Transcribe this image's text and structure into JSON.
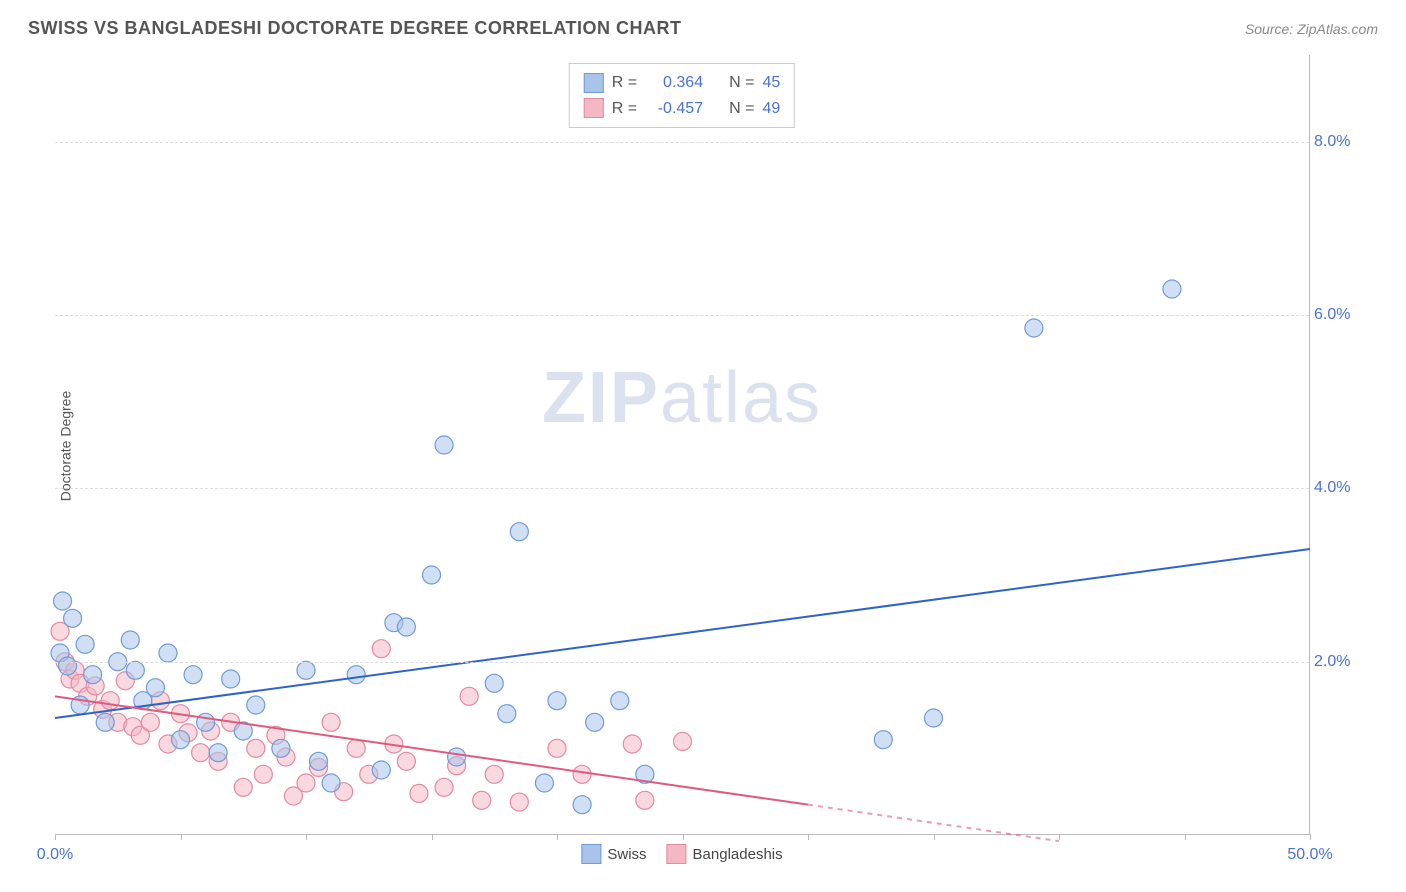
{
  "title": "SWISS VS BANGLADESHI DOCTORATE DEGREE CORRELATION CHART",
  "source_label": "Source: ZipAtlas.com",
  "y_axis_title": "Doctorate Degree",
  "watermark": {
    "bold": "ZIP",
    "light": "atlas"
  },
  "chart": {
    "type": "scatter",
    "xlim": [
      0,
      50
    ],
    "ylim": [
      0,
      9
    ],
    "x_ticks": [
      0,
      5,
      10,
      15,
      20,
      25,
      30,
      35,
      40,
      45,
      50
    ],
    "x_tick_labels": {
      "0": "0.0%",
      "50": "50.0%"
    },
    "x_tick_label_color": "#4a72d4",
    "y_ticks": [
      2,
      4,
      6,
      8
    ],
    "y_tick_labels": [
      "2.0%",
      "4.0%",
      "6.0%",
      "8.0%"
    ],
    "y_tick_label_color": "#4a72d4",
    "grid_color": "#dddddd",
    "axis_color": "#bbbbbb",
    "background_color": "#ffffff"
  },
  "series": {
    "swiss": {
      "label": "Swiss",
      "color_fill": "#a9c4ea",
      "color_stroke": "#6f9bd8",
      "line_color": "#2f63c9",
      "marker_radius": 9,
      "fill_opacity": 0.55,
      "line_width": 2,
      "R": "0.364",
      "N": "45",
      "points": [
        [
          0.3,
          2.7
        ],
        [
          0.7,
          2.5
        ],
        [
          0.2,
          2.1
        ],
        [
          0.5,
          1.95
        ],
        [
          1.2,
          2.2
        ],
        [
          1.0,
          1.5
        ],
        [
          1.5,
          1.85
        ],
        [
          2.0,
          1.3
        ],
        [
          2.5,
          2.0
        ],
        [
          3.0,
          2.25
        ],
        [
          3.2,
          1.9
        ],
        [
          3.5,
          1.55
        ],
        [
          4.0,
          1.7
        ],
        [
          4.5,
          2.1
        ],
        [
          5.0,
          1.1
        ],
        [
          5.5,
          1.85
        ],
        [
          6.0,
          1.3
        ],
        [
          6.5,
          0.95
        ],
        [
          7.0,
          1.8
        ],
        [
          7.5,
          1.2
        ],
        [
          8.0,
          1.5
        ],
        [
          9.0,
          1.0
        ],
        [
          10.0,
          1.9
        ],
        [
          10.5,
          0.85
        ],
        [
          11.0,
          0.6
        ],
        [
          12.0,
          1.85
        ],
        [
          13.0,
          0.75
        ],
        [
          13.5,
          2.45
        ],
        [
          14.0,
          2.4
        ],
        [
          15.0,
          3.0
        ],
        [
          15.5,
          4.5
        ],
        [
          16.0,
          0.9
        ],
        [
          17.5,
          1.75
        ],
        [
          18.0,
          1.4
        ],
        [
          18.5,
          3.5
        ],
        [
          19.5,
          0.6
        ],
        [
          20.0,
          1.55
        ],
        [
          21.0,
          0.35
        ],
        [
          21.5,
          1.3
        ],
        [
          22.5,
          1.55
        ],
        [
          23.5,
          0.7
        ],
        [
          33.0,
          1.1
        ],
        [
          35.0,
          1.35
        ],
        [
          39.0,
          5.85
        ],
        [
          44.5,
          6.3
        ]
      ],
      "trend": {
        "x1": 0,
        "y1": 1.35,
        "x2": 50,
        "y2": 3.3
      }
    },
    "bangladeshi": {
      "label": "Bangladeshis",
      "color_fill": "#f4b8c4",
      "color_stroke": "#e38aa0",
      "line_color": "#e05a7d",
      "marker_radius": 9,
      "fill_opacity": 0.55,
      "line_width": 2,
      "R": "-0.457",
      "N": "49",
      "points": [
        [
          0.2,
          2.35
        ],
        [
          0.4,
          2.0
        ],
        [
          0.6,
          1.8
        ],
        [
          0.8,
          1.9
        ],
        [
          1.0,
          1.75
        ],
        [
          1.3,
          1.6
        ],
        [
          1.6,
          1.72
        ],
        [
          1.9,
          1.45
        ],
        [
          2.2,
          1.55
        ],
        [
          2.5,
          1.3
        ],
        [
          2.8,
          1.78
        ],
        [
          3.1,
          1.25
        ],
        [
          3.4,
          1.15
        ],
        [
          3.8,
          1.3
        ],
        [
          4.2,
          1.55
        ],
        [
          4.5,
          1.05
        ],
        [
          5.0,
          1.4
        ],
        [
          5.3,
          1.18
        ],
        [
          5.8,
          0.95
        ],
        [
          6.2,
          1.2
        ],
        [
          6.5,
          0.85
        ],
        [
          7.0,
          1.3
        ],
        [
          7.5,
          0.55
        ],
        [
          8.0,
          1.0
        ],
        [
          8.3,
          0.7
        ],
        [
          8.8,
          1.15
        ],
        [
          9.2,
          0.9
        ],
        [
          9.5,
          0.45
        ],
        [
          10.0,
          0.6
        ],
        [
          10.5,
          0.78
        ],
        [
          11.0,
          1.3
        ],
        [
          11.5,
          0.5
        ],
        [
          12.0,
          1.0
        ],
        [
          12.5,
          0.7
        ],
        [
          13.0,
          2.15
        ],
        [
          13.5,
          1.05
        ],
        [
          14.0,
          0.85
        ],
        [
          14.5,
          0.48
        ],
        [
          15.5,
          0.55
        ],
        [
          16.0,
          0.8
        ],
        [
          16.5,
          1.6
        ],
        [
          17.0,
          0.4
        ],
        [
          17.5,
          0.7
        ],
        [
          18.5,
          0.38
        ],
        [
          20.0,
          1.0
        ],
        [
          21.0,
          0.7
        ],
        [
          23.0,
          1.05
        ],
        [
          23.5,
          0.4
        ],
        [
          25.0,
          1.08
        ]
      ],
      "trend_solid": {
        "x1": 0,
        "y1": 1.6,
        "x2": 30,
        "y2": 0.35
      },
      "trend_dashed": {
        "x1": 30,
        "y1": 0.35,
        "x2": 40,
        "y2": -0.07
      }
    }
  },
  "legend_top": {
    "r_label": "R =",
    "n_label": "N =",
    "value_color": "#4a72d4",
    "label_color": "#555555"
  },
  "legend_bottom": {
    "items": [
      "swiss",
      "bangladeshi"
    ]
  }
}
